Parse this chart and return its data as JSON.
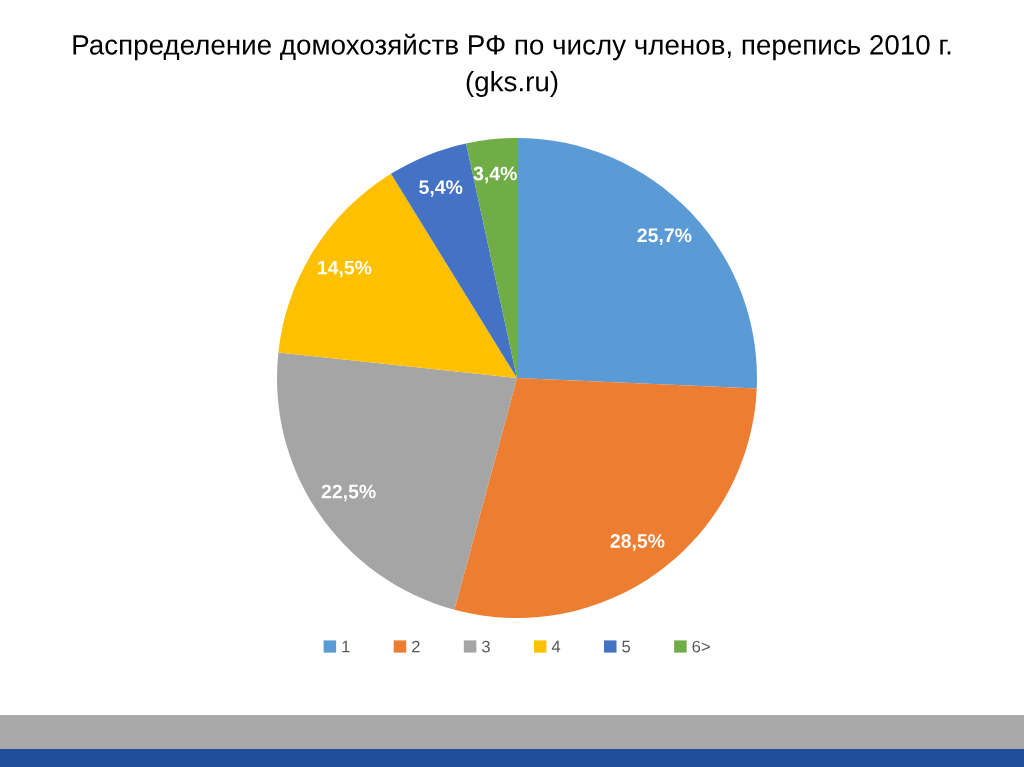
{
  "chart_data": {
    "type": "pie",
    "title": "Распределение домохозяйств РФ по числу членов, перепись 2010 г.",
    "subtitle": "(gks.ru)",
    "categories": [
      "1",
      "2",
      "3",
      "4",
      "5",
      "6>"
    ],
    "values": [
      25.7,
      28.5,
      22.5,
      14.5,
      5.4,
      3.4
    ],
    "colors": [
      "#5b9bd5",
      "#ed7d31",
      "#a5a5a5",
      "#ffc000",
      "#4472c4",
      "#70ad47"
    ],
    "value_labels": [
      "25,7%",
      "28,5%",
      "22,5%",
      "14,5%",
      "5,4%",
      "3,4%"
    ],
    "legend": "bottom"
  }
}
